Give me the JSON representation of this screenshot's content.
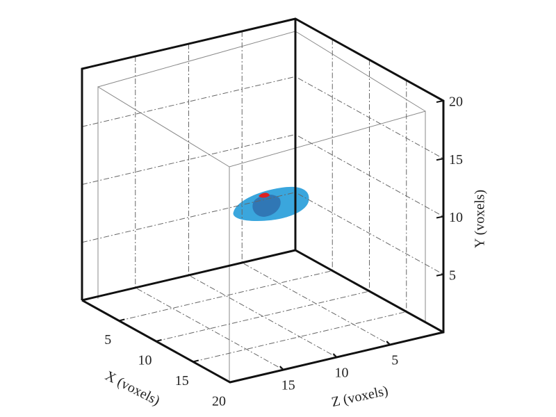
{
  "chart_data": {
    "type": "surface3d",
    "x_label": "X (voxels)",
    "y_label": "Y (voxels)",
    "z_label": "Z (voxels)",
    "xlim": [
      0,
      20
    ],
    "ylim": [
      0,
      20
    ],
    "zlim": [
      0,
      20
    ],
    "xticks": [
      5,
      10,
      15,
      20
    ],
    "yticks": [
      5,
      10,
      15,
      20
    ],
    "zticks": [
      5,
      10,
      15
    ],
    "grid": true
  }
}
